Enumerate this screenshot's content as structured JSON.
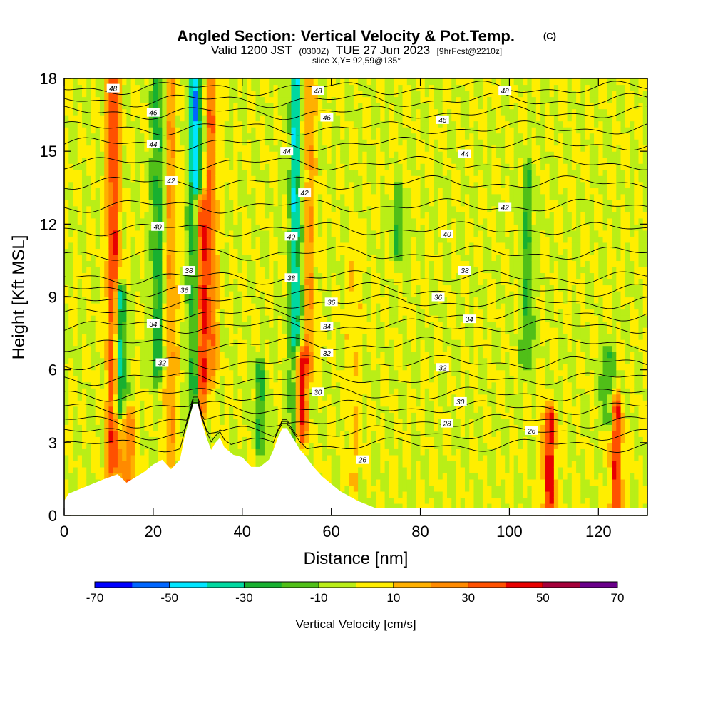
{
  "title": {
    "main": "Angled Section: Vertical Velocity & Pot.Temp.",
    "main_units": "(C)",
    "valid_prefix": "Valid 1200 JST",
    "valid_utc": "(0300Z)",
    "valid_date": "TUE 27 Jun 2023",
    "forecast": "[9hrFcst@2210z]",
    "slice": "slice X,Y= 92,59@135°"
  },
  "chart_data": {
    "type": "heatmap",
    "xlabel": "Distance [nm]",
    "ylabel": "Height [Kft MSL]",
    "xlim": [
      0,
      131
    ],
    "ylim": [
      0,
      18
    ],
    "x_ticks": [
      0,
      20,
      40,
      60,
      80,
      100,
      120
    ],
    "y_ticks": [
      0,
      3,
      6,
      9,
      12,
      15,
      18
    ],
    "colorbar": {
      "label": "Vertical Velocity [cm/s]",
      "range": [
        -70,
        70
      ],
      "tick_labels": [
        -70,
        -50,
        -30,
        -10,
        10,
        30,
        50,
        70
      ],
      "colors": [
        "#0000ff",
        "#0066ff",
        "#00e5ff",
        "#00d8a0",
        "#18b030",
        "#50bf18",
        "#b9ee17",
        "#ffee00",
        "#ffb000",
        "#ff8a00",
        "#ff5000",
        "#e80000",
        "#a5003a",
        "#6a008a"
      ]
    },
    "background_value_cm_s": 0,
    "updraft_columns": [
      {
        "x": 11,
        "ymin": 2.0,
        "ymax": 18,
        "peak": 40
      },
      {
        "x": 14.5,
        "ymin": 1.0,
        "ymax": 4.0,
        "peak": 30
      },
      {
        "x": 24,
        "ymin": 2.5,
        "ymax": 18,
        "peak": 20
      },
      {
        "x": 30.5,
        "ymin": 4.5,
        "ymax": 12.8,
        "peak": 60
      },
      {
        "x": 33,
        "ymin": 6.0,
        "ymax": 18,
        "peak": 30
      },
      {
        "x": 53,
        "ymin": 3.3,
        "ymax": 6.4,
        "peak": 60
      },
      {
        "x": 55,
        "ymin": 6.0,
        "ymax": 18,
        "peak": 20
      },
      {
        "x": 65,
        "ymin": 1.5,
        "ymax": 11.0,
        "peak": 10
      },
      {
        "x": 109,
        "ymin": 0.4,
        "ymax": 4.0,
        "peak": 45
      },
      {
        "x": 124,
        "ymin": 0.4,
        "ymax": 4.5,
        "peak": 40
      }
    ],
    "downdraft_columns": [
      {
        "x": 29.5,
        "ymin": 4.6,
        "ymax": 18,
        "peak": -50
      },
      {
        "x": 12.5,
        "ymin": 4.5,
        "ymax": 9.0,
        "peak": -40
      },
      {
        "x": 21,
        "ymin": 6.0,
        "ymax": 18,
        "peak": -25
      },
      {
        "x": 52,
        "ymin": 3.0,
        "ymax": 18,
        "peak": -40
      },
      {
        "x": 44,
        "ymin": 3.0,
        "ymax": 6.0,
        "peak": -20
      },
      {
        "x": 75,
        "ymin": 11.0,
        "ymax": 13.0,
        "peak": -20
      },
      {
        "x": 104,
        "ymin": 6.5,
        "ymax": 14.0,
        "peak": -20
      },
      {
        "x": 122,
        "ymin": 4.0,
        "ymax": 6.5,
        "peak": -20
      }
    ],
    "terrain_profile": {
      "x": [
        0,
        1,
        5,
        9,
        12,
        14,
        18,
        20,
        22,
        24,
        26,
        27,
        28,
        29,
        30,
        31,
        32,
        33,
        34,
        35,
        36,
        38,
        40,
        42,
        44,
        46,
        47,
        48,
        49,
        50,
        51,
        52,
        53,
        54,
        56,
        58,
        60,
        62,
        64,
        66,
        70,
        131
      ],
      "height_kft": [
        0.6,
        0.9,
        1.2,
        1.5,
        1.7,
        1.35,
        1.8,
        2.1,
        2.3,
        1.9,
        2.3,
        3.2,
        3.9,
        4.6,
        4.6,
        3.8,
        3.2,
        2.7,
        3.0,
        3.2,
        2.8,
        2.5,
        2.4,
        2.0,
        2.0,
        2.3,
        2.7,
        3.2,
        3.6,
        3.6,
        3.3,
        3.0,
        2.7,
        2.5,
        2.0,
        1.6,
        1.3,
        1.0,
        0.8,
        0.6,
        0.3,
        0.3
      ]
    },
    "pot_temp_contours": [
      {
        "theta": 26,
        "label_x": 68,
        "label_y": 2.4,
        "base_y": 2.9
      },
      {
        "theta": 28,
        "label_x": 86,
        "label_y": 3.9,
        "base_y": 3.9
      },
      {
        "theta": 30,
        "label_x": 57,
        "label_y": 5.0,
        "base_y": 5.0
      },
      {
        "theta": 32,
        "label_x": 23,
        "label_y": 6.3,
        "base_y": 6.3
      },
      {
        "theta": 34,
        "label_x": 20,
        "label_y": 7.8,
        "base_y": 7.8
      },
      {
        "theta": 36,
        "label_x": 61,
        "label_y": 8.8,
        "base_y": 8.8
      },
      {
        "theta": 38,
        "label_x": 52,
        "label_y": 9.8,
        "base_y": 9.8
      },
      {
        "theta": 40,
        "label_x": 22,
        "label_y": 11.8,
        "base_y": 11.8
      },
      {
        "theta": 42,
        "label_x": 24,
        "label_y": 13.7,
        "base_y": 13.7
      },
      {
        "theta": 44,
        "label_x": 20,
        "label_y": 15.3,
        "base_y": 15.3
      },
      {
        "theta": 46,
        "label_x": 20,
        "label_y": 16.6,
        "base_y": 16.6
      },
      {
        "theta": 48,
        "label_x": 11,
        "label_y": 17.6,
        "base_y": 17.6
      }
    ],
    "contour_labels": [
      {
        "text": "48",
        "x": 11,
        "y": 17.6
      },
      {
        "text": "48",
        "x": 57,
        "y": 17.5
      },
      {
        "text": "48",
        "x": 99,
        "y": 17.5
      },
      {
        "text": "46",
        "x": 20,
        "y": 16.6
      },
      {
        "text": "46",
        "x": 59,
        "y": 16.4
      },
      {
        "text": "46",
        "x": 85,
        "y": 16.3
      },
      {
        "text": "44",
        "x": 20,
        "y": 15.3
      },
      {
        "text": "44",
        "x": 50,
        "y": 15.0
      },
      {
        "text": "44",
        "x": 90,
        "y": 14.9
      },
      {
        "text": "42",
        "x": 24,
        "y": 13.8
      },
      {
        "text": "42",
        "x": 54,
        "y": 13.3
      },
      {
        "text": "42",
        "x": 99,
        "y": 12.7
      },
      {
        "text": "40",
        "x": 21,
        "y": 11.9
      },
      {
        "text": "40",
        "x": 51,
        "y": 11.5
      },
      {
        "text": "40",
        "x": 86,
        "y": 11.6
      },
      {
        "text": "38",
        "x": 28,
        "y": 10.1
      },
      {
        "text": "38",
        "x": 51,
        "y": 9.8
      },
      {
        "text": "38",
        "x": 90,
        "y": 10.1
      },
      {
        "text": "36",
        "x": 27,
        "y": 9.3
      },
      {
        "text": "36",
        "x": 60,
        "y": 8.8
      },
      {
        "text": "36",
        "x": 84,
        "y": 9.0
      },
      {
        "text": "34",
        "x": 20,
        "y": 7.9
      },
      {
        "text": "34",
        "x": 59,
        "y": 7.8
      },
      {
        "text": "34",
        "x": 91,
        "y": 8.1
      },
      {
        "text": "32",
        "x": 22,
        "y": 6.3
      },
      {
        "text": "32",
        "x": 59,
        "y": 6.7
      },
      {
        "text": "32",
        "x": 85,
        "y": 6.1
      },
      {
        "text": "30",
        "x": 57,
        "y": 5.1
      },
      {
        "text": "30",
        "x": 89,
        "y": 4.7
      },
      {
        "text": "28",
        "x": 86,
        "y": 3.8
      },
      {
        "text": "26",
        "x": 67,
        "y": 2.3
      },
      {
        "text": "26",
        "x": 105,
        "y": 3.5
      }
    ]
  }
}
